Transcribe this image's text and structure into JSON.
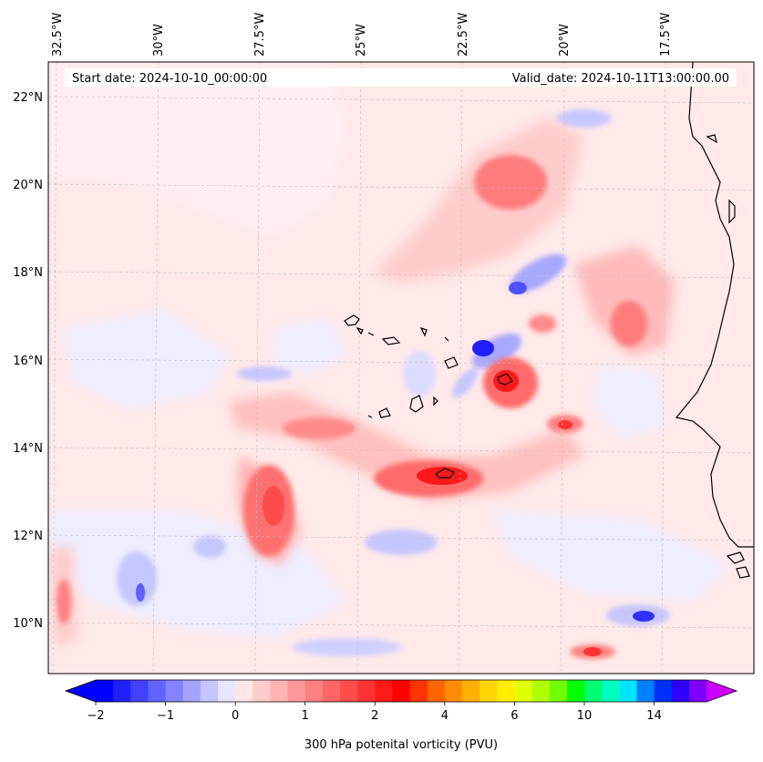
{
  "header": {
    "start_date": "Start date: 2024-10-10_00:00:00",
    "valid_date": "Valid_date: 2024-10-11T13:00:00.00"
  },
  "map": {
    "lon_labels": [
      "32.5°W",
      "30°W",
      "27.5°W",
      "25°W",
      "22.5°W",
      "20°W",
      "17.5°W"
    ],
    "lat_labels": [
      "22°N",
      "20°N",
      "18°N",
      "16°N",
      "14°N",
      "12°N",
      "10°N"
    ],
    "field_levels": [
      {
        "value": "-2",
        "color": "#0000ff"
      },
      {
        "value": "-1",
        "color": "#7b7bff"
      },
      {
        "value": "-0.5",
        "color": "#c4c4ff"
      },
      {
        "value": "-0.2",
        "color": "#ededff"
      },
      {
        "value": "0",
        "color": "#ffe8e8"
      },
      {
        "value": "0.5",
        "color": "#ffc4c4"
      },
      {
        "value": "1",
        "color": "#ff8a8a"
      },
      {
        "value": "1.5",
        "color": "#ff5a5a"
      },
      {
        "value": "2",
        "color": "#ff1010"
      }
    ]
  },
  "colorbar": {
    "title": "300 hPa potenital vorticity (PVU)",
    "tick_labels": [
      "−2",
      "−1",
      "0",
      "1",
      "2",
      "4",
      "6",
      "10",
      "14"
    ],
    "colors": [
      "#0000ff",
      "#2020ff",
      "#4141ff",
      "#6262ff",
      "#8383ff",
      "#a4a4ff",
      "#c5c5ff",
      "#e6e6ff",
      "#ffe6e6",
      "#ffcccc",
      "#ffb3b3",
      "#ff9999",
      "#ff8080",
      "#ff6666",
      "#ff4d4d",
      "#ff3333",
      "#ff1a1a",
      "#ff0000",
      "#ff3300",
      "#ff6600",
      "#ff8c00",
      "#ffb000",
      "#ffd700",
      "#ffee00",
      "#e0ff00",
      "#b0ff00",
      "#70ff00",
      "#00ff00",
      "#00ff70",
      "#00ffc0",
      "#00e5ff",
      "#0080ff",
      "#0030ff",
      "#3000ff",
      "#8000ff"
    ],
    "under_color": "#0000ff",
    "over_color": "#cc00ff"
  }
}
